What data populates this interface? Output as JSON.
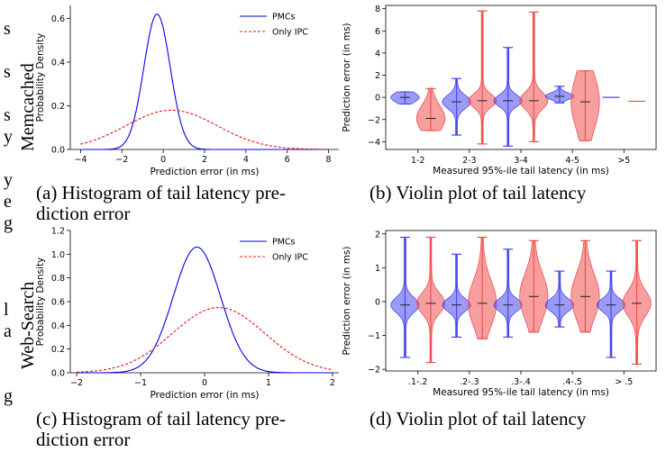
{
  "row_labels": [
    "Memcached",
    "Web-Search"
  ],
  "edge_text": [
    "s",
    "s",
    "s",
    "y",
    "y",
    "e",
    "g",
    "l",
    "a",
    "g"
  ],
  "captions": [
    {
      "line1": "(a) Histogram of tail latency pre-",
      "line2": "diction error"
    },
    {
      "line1": "(b) Violin plot of tail latency",
      "line2": ""
    },
    {
      "line1": "(c) Histogram of tail latency pre-",
      "line2": "diction error"
    },
    {
      "line1": "(d) Violin plot of tail latency",
      "line2": ""
    }
  ],
  "colors": {
    "pmc": "#0000ee",
    "ipc": "#ee1111",
    "violin_blue": "#4848f0",
    "violin_red": "#f05050"
  },
  "chart_data": [
    {
      "type": "line",
      "xlabel": "Prediction error (in ms)",
      "ylabel": "Probability Density",
      "xlim": [
        -4.5,
        8.5
      ],
      "ylim": [
        0,
        0.66
      ],
      "xticks": [
        -4,
        -2,
        0,
        2,
        4,
        6,
        8
      ],
      "yticks": [
        0.0,
        0.2,
        0.4,
        0.6
      ],
      "ytick_labels": [
        "0.0",
        "0.2",
        "0.4",
        "0.6"
      ],
      "legend_position": "top-right",
      "series": [
        {
          "name": "PMCs",
          "style": "solid",
          "distribution": {
            "mean": -0.3,
            "sd": 0.64,
            "peak": 0.62
          }
        },
        {
          "name": "Only IPC",
          "style": "dashed",
          "distribution": {
            "mean": 0.4,
            "sd": 2.2,
            "peak": 0.18
          }
        }
      ]
    },
    {
      "type": "violin",
      "xlabel": "Measured 95%-ile tail latency (in ms)",
      "ylabel": "Prediction error (in ms)",
      "ylim": [
        -4.7,
        8.3
      ],
      "yticks": [
        -4,
        -2,
        0,
        2,
        4,
        6,
        8
      ],
      "categories": [
        "1-2",
        "2-3",
        "3-4",
        "4-5",
        ">5"
      ],
      "violins": [
        {
          "color": "blue",
          "min": -0.6,
          "max": 0.5,
          "median": 0.0,
          "q1": -0.3,
          "q3": 0.3
        },
        {
          "color": "red",
          "min": -3.0,
          "max": 0.8,
          "median": -1.9,
          "q1": -2.6,
          "q3": -1.0
        },
        {
          "color": "blue",
          "min": -3.4,
          "max": 1.7,
          "median": -0.4,
          "q1": -0.7,
          "q3": 0.1
        },
        {
          "color": "red",
          "min": -4.2,
          "max": 7.8,
          "median": -0.3,
          "q1": -0.6,
          "q3": 0.2
        },
        {
          "color": "blue",
          "min": -4.4,
          "max": 4.5,
          "median": -0.3,
          "q1": -0.6,
          "q3": 0.1
        },
        {
          "color": "red",
          "min": -4.0,
          "max": 7.7,
          "median": -0.3,
          "q1": -0.8,
          "q3": 0.2
        },
        {
          "color": "blue",
          "min": -0.5,
          "max": 1.0,
          "median": 0.1,
          "q1": -0.1,
          "q3": 0.3
        },
        {
          "color": "red",
          "min": -3.9,
          "max": 2.4,
          "median": -0.4,
          "q1": -1.6,
          "q3": 1.8
        },
        {
          "color": "blue",
          "min": 0.0,
          "max": 0.0,
          "median": 0.0,
          "q1": 0.0,
          "q3": 0.0
        },
        {
          "color": "red",
          "min": -0.35,
          "max": -0.35,
          "median": -0.35,
          "q1": -0.35,
          "q3": -0.35
        }
      ]
    },
    {
      "type": "line",
      "xlabel": "Prediction error (in ms)",
      "ylabel": "Probability Density",
      "xlim": [
        -2.1,
        2.1
      ],
      "ylim": [
        0,
        1.2
      ],
      "xticks": [
        -2,
        -1,
        0,
        1,
        2
      ],
      "yticks": [
        0.0,
        0.2,
        0.4,
        0.6,
        0.8,
        1.0,
        1.2
      ],
      "ytick_labels": [
        "0.0",
        "0.2",
        "0.4",
        "0.6",
        "0.8",
        "1.0",
        "1.2"
      ],
      "legend_position": "top-right",
      "series": [
        {
          "name": "PMCs",
          "style": "solid",
          "distribution": {
            "mean": -0.12,
            "sd": 0.37,
            "peak": 1.06
          }
        },
        {
          "name": "Only IPC",
          "style": "dashed",
          "distribution": {
            "mean": 0.22,
            "sd": 0.72,
            "peak": 0.55
          }
        }
      ]
    },
    {
      "type": "violin",
      "xlabel": "Measured 95%-ile tail latency (in ms)",
      "ylabel": "Prediction error (in ms)",
      "ylim": [
        -2.05,
        2.1
      ],
      "yticks": [
        -2,
        -1,
        0,
        1,
        2
      ],
      "categories": [
        ".1-.2",
        ".2-.3",
        ".3-.4",
        ".4-.5",
        "> .5"
      ],
      "violins": [
        {
          "color": "blue",
          "min": -1.65,
          "max": 1.9,
          "median": -0.1,
          "q1": -0.25,
          "q3": 0.05
        },
        {
          "color": "red",
          "min": -1.8,
          "max": 1.9,
          "median": -0.05,
          "q1": -0.3,
          "q3": 0.1
        },
        {
          "color": "blue",
          "min": -1.05,
          "max": 1.4,
          "median": -0.1,
          "q1": -0.2,
          "q3": 0.05
        },
        {
          "color": "red",
          "min": -1.1,
          "max": 1.9,
          "median": -0.05,
          "q1": -0.4,
          "q3": 0.5
        },
        {
          "color": "blue",
          "min": -1.05,
          "max": 1.55,
          "median": -0.1,
          "q1": -0.2,
          "q3": 0.05
        },
        {
          "color": "red",
          "min": -0.9,
          "max": 1.8,
          "median": 0.15,
          "q1": -0.3,
          "q3": 0.6
        },
        {
          "color": "blue",
          "min": -0.75,
          "max": 0.9,
          "median": -0.1,
          "q1": -0.2,
          "q3": 0.05
        },
        {
          "color": "red",
          "min": -0.9,
          "max": 1.8,
          "median": 0.15,
          "q1": -0.3,
          "q3": 0.6
        },
        {
          "color": "blue",
          "min": -1.65,
          "max": 0.9,
          "median": -0.1,
          "q1": -0.2,
          "q3": 0.05
        },
        {
          "color": "red",
          "min": -1.85,
          "max": 1.8,
          "median": -0.05,
          "q1": -0.3,
          "q3": 0.2
        }
      ]
    }
  ]
}
